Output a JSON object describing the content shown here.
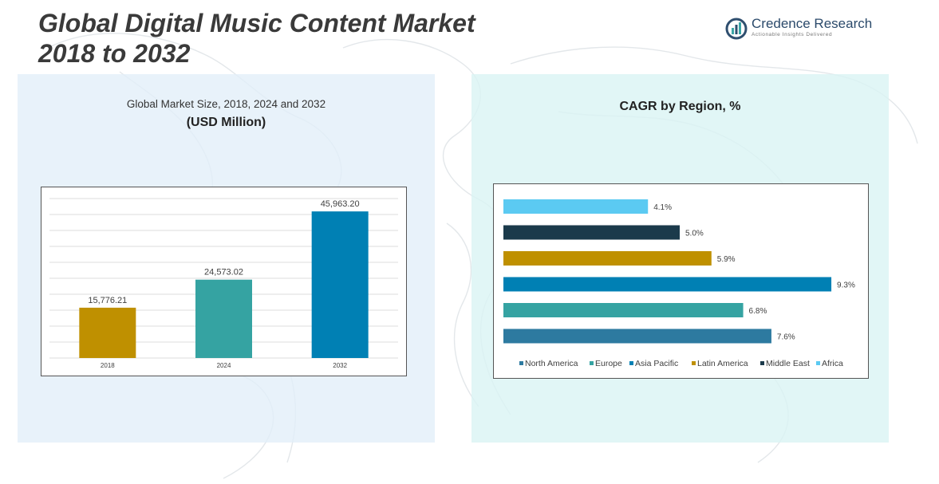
{
  "page": {
    "title_line1": "Global Digital Music Content Market",
    "title_line2": "2018 to 2032"
  },
  "brand": {
    "name": "Credence Research",
    "tagline": "Actionable Insights Delivered",
    "colors": {
      "name": "#2b4a6b",
      "mark_dark": "#2f4f6f",
      "mark_teal": "#3aa6a6"
    },
    "icon": "credence-logo-icon"
  },
  "left_panel": {
    "subtitle": "Global Market Size, 2018, 2024 and 2032",
    "unit": "(USD Million)"
  },
  "right_panel": {
    "title": "CAGR by Region, %"
  },
  "chart_data": [
    {
      "type": "bar",
      "categories": [
        "2018",
        "2024",
        "2032"
      ],
      "values": [
        15776.21,
        24573.02,
        45963.2
      ],
      "data_labels": [
        "15,776.21",
        "24,573.02",
        "45,963.20"
      ],
      "colors": [
        "#bf9000",
        "#35a3a2",
        "#0080b4"
      ],
      "ylim": [
        0,
        50000
      ],
      "grid": true,
      "title": "Global Market Size, 2018, 2024 and 2032",
      "ylabel": "(USD Million)",
      "xlabel": ""
    },
    {
      "type": "bar",
      "orientation": "horizontal",
      "title": "CAGR by Region, %",
      "categories": [
        "Africa",
        "Middle East",
        "Latin America",
        "Asia Pacific",
        "Europe",
        "North America"
      ],
      "values": [
        4.1,
        5.0,
        5.9,
        9.3,
        6.8,
        7.6
      ],
      "data_labels": [
        "4.1%",
        "5.0%",
        "5.9%",
        "9.3%",
        "6.8%",
        "7.6%"
      ],
      "colors": [
        "#5bcaf2",
        "#1b3a4b",
        "#bf9000",
        "#0080b4",
        "#35a3a2",
        "#2d7aa0"
      ],
      "legend": [
        "North America",
        "Europe",
        "Asia Pacific",
        "Latin America",
        "Middle East",
        "Africa"
      ],
      "legend_colors": [
        "#2d7aa0",
        "#35a3a2",
        "#0080b4",
        "#bf9000",
        "#1b3a4b",
        "#5bcaf2"
      ],
      "legend_position": "bottom",
      "xlim": [
        0,
        10
      ],
      "grid": false
    }
  ]
}
